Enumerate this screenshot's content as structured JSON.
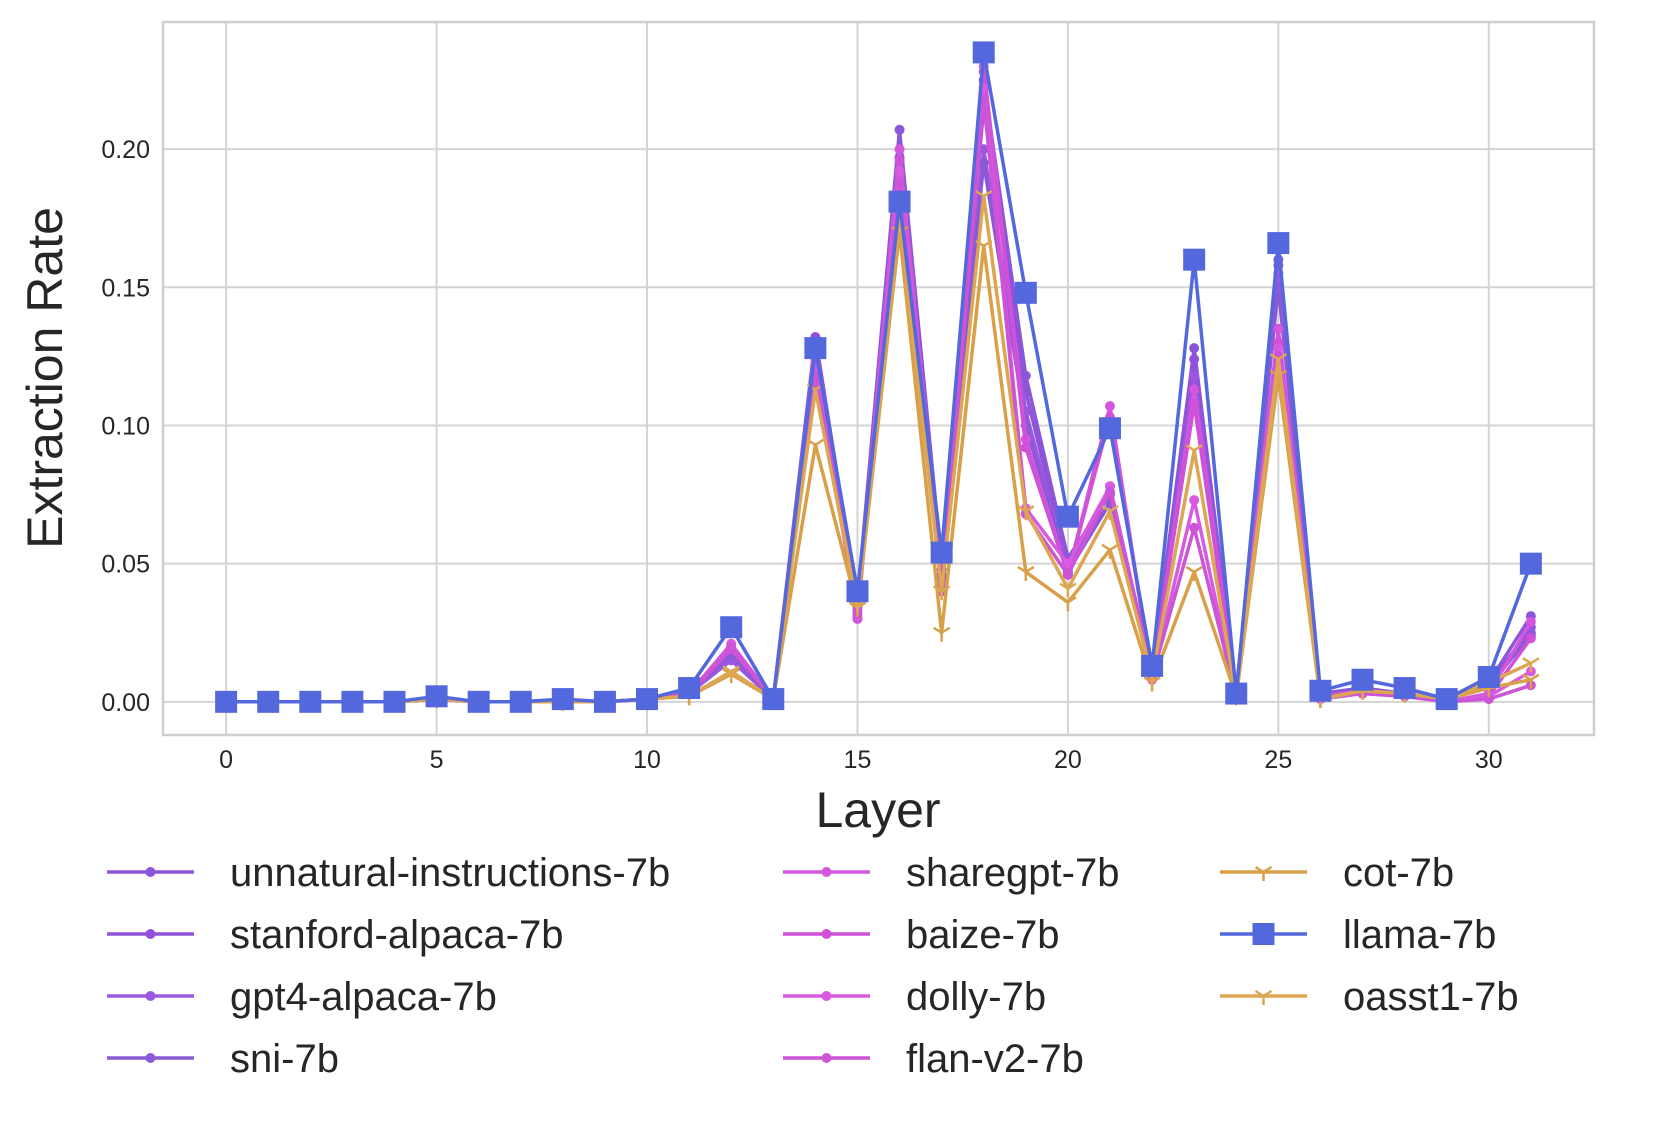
{
  "chart_data": {
    "type": "line",
    "title": "",
    "xlabel": "Layer",
    "ylabel": "Extraction Rate",
    "xlim": [
      -1.5,
      32.5
    ],
    "ylim": [
      -0.012,
      0.246
    ],
    "xticks": [
      0,
      5,
      10,
      15,
      20,
      25,
      30
    ],
    "xtick_labels": [
      "0",
      "5",
      "10",
      "15",
      "20",
      "25",
      "30"
    ],
    "yticks": [
      0,
      0.05,
      0.1,
      0.15,
      0.2
    ],
    "ytick_labels": [
      "0.00",
      "0.05",
      "0.10",
      "0.15",
      "0.20"
    ],
    "grid": true,
    "legend_position": "bottom, three columns",
    "x": [
      0,
      1,
      2,
      3,
      4,
      5,
      6,
      7,
      8,
      9,
      10,
      11,
      12,
      13,
      14,
      15,
      16,
      17,
      18,
      19,
      20,
      21,
      22,
      23,
      24,
      25,
      26,
      27,
      28,
      29,
      30,
      31
    ],
    "series": [
      {
        "name": "unnatural-instructions-7b",
        "color": "#8b57d9",
        "marker": "dot",
        "values": [
          0,
          0,
          0,
          0,
          0,
          0.001,
          0,
          0,
          0,
          0,
          0.001,
          0.004,
          0.018,
          0.001,
          0.13,
          0.037,
          0.207,
          0.05,
          0.225,
          0.118,
          0.052,
          0.075,
          0.011,
          0.128,
          0.003,
          0.16,
          0.003,
          0.005,
          0.003,
          0.001,
          0.007,
          0.031
        ]
      },
      {
        "name": "stanford-alpaca-7b",
        "color": "#9152d9",
        "marker": "dot",
        "values": [
          0,
          0,
          0,
          0,
          0,
          0.001,
          0,
          0,
          0,
          0,
          0.001,
          0.004,
          0.016,
          0.001,
          0.132,
          0.036,
          0.197,
          0.048,
          0.215,
          0.112,
          0.05,
          0.072,
          0.01,
          0.124,
          0.003,
          0.158,
          0.002,
          0.004,
          0.002,
          0.001,
          0.006,
          0.027
        ]
      },
      {
        "name": "gpt4-alpaca-7b",
        "color": "#9a58e0",
        "marker": "dot",
        "values": [
          0,
          0,
          0,
          0,
          0,
          0.001,
          0,
          0,
          0,
          0,
          0.001,
          0.003,
          0.015,
          0.001,
          0.128,
          0.035,
          0.19,
          0.046,
          0.2,
          0.105,
          0.048,
          0.078,
          0.01,
          0.118,
          0.003,
          0.155,
          0.002,
          0.004,
          0.002,
          0.001,
          0.005,
          0.025
        ]
      },
      {
        "name": "sni-7b",
        "color": "#8a5ad6",
        "marker": "dot",
        "values": [
          0,
          0,
          0,
          0,
          0,
          0.001,
          0,
          0,
          0,
          0,
          0.001,
          0.004,
          0.017,
          0.001,
          0.126,
          0.034,
          0.185,
          0.045,
          0.195,
          0.1,
          0.047,
          0.072,
          0.01,
          0.112,
          0.003,
          0.15,
          0.002,
          0.004,
          0.002,
          0.001,
          0.006,
          0.024
        ]
      },
      {
        "name": "sharegpt-7b",
        "color": "#d456de",
        "marker": "dot",
        "values": [
          0,
          0,
          0,
          0,
          0,
          0.001,
          0,
          0,
          0,
          0,
          0.001,
          0.003,
          0.02,
          0.001,
          0.124,
          0.033,
          0.2,
          0.043,
          0.23,
          0.095,
          0.046,
          0.107,
          0.008,
          0.113,
          0.002,
          0.135,
          0.002,
          0.004,
          0.002,
          0.0,
          0.003,
          0.029
        ]
      },
      {
        "name": "baize-7b",
        "color": "#d050d8",
        "marker": "dot",
        "values": [
          0,
          0,
          0,
          0,
          0,
          0.001,
          0,
          0,
          0,
          0,
          0.001,
          0.003,
          0.019,
          0.001,
          0.122,
          0.03,
          0.196,
          0.04,
          0.228,
          0.092,
          0.046,
          0.103,
          0.009,
          0.108,
          0.002,
          0.13,
          0.001,
          0.003,
          0.002,
          0.0,
          0.002,
          0.023
        ]
      },
      {
        "name": "dolly-7b",
        "color": "#d85ae0",
        "marker": "dot",
        "values": [
          0,
          0,
          0,
          0,
          0,
          0.001,
          0,
          0,
          0,
          0,
          0.001,
          0.003,
          0.021,
          0.001,
          0.12,
          0.031,
          0.192,
          0.042,
          0.222,
          0.07,
          0.05,
          0.078,
          0.009,
          0.073,
          0.002,
          0.128,
          0.002,
          0.004,
          0.002,
          0.0,
          0.002,
          0.011
        ]
      },
      {
        "name": "flan-v2-7b",
        "color": "#cc54d6",
        "marker": "dot",
        "values": [
          0,
          0,
          0,
          0,
          0,
          0.001,
          0,
          0,
          0,
          0,
          0.001,
          0.003,
          0.02,
          0.001,
          0.118,
          0.032,
          0.188,
          0.041,
          0.218,
          0.068,
          0.046,
          0.076,
          0.009,
          0.063,
          0.002,
          0.125,
          0.002,
          0.003,
          0.002,
          0.0,
          0.001,
          0.006
        ]
      },
      {
        "name": "cot-7b",
        "color": "#d9a04a",
        "marker": "tri",
        "values": [
          0,
          0,
          0,
          0,
          0,
          0.001,
          0,
          0,
          0,
          0,
          0.001,
          0.002,
          0.01,
          0.001,
          0.093,
          0.034,
          0.17,
          0.025,
          0.165,
          0.047,
          0.036,
          0.055,
          0.007,
          0.047,
          0.002,
          0.118,
          0.001,
          0.004,
          0.003,
          0.001,
          0.005,
          0.008
        ]
      },
      {
        "name": "llama-7b",
        "color": "#5468de",
        "marker": "square",
        "values": [
          0,
          0,
          0,
          0,
          0,
          0.002,
          0,
          0,
          0.001,
          0,
          0.001,
          0.005,
          0.027,
          0.001,
          0.128,
          0.04,
          0.181,
          0.054,
          0.235,
          0.148,
          0.067,
          0.099,
          0.013,
          0.16,
          0.003,
          0.166,
          0.004,
          0.008,
          0.005,
          0.001,
          0.009,
          0.05
        ]
      },
      {
        "name": "oasst1-7b",
        "color": "#dca653",
        "marker": "tri",
        "values": [
          0,
          0,
          0,
          0,
          0,
          0.001,
          0,
          0,
          0,
          0,
          0.001,
          0.002,
          0.011,
          0.001,
          0.113,
          0.035,
          0.177,
          0.04,
          0.183,
          0.069,
          0.041,
          0.069,
          0.009,
          0.091,
          0.002,
          0.124,
          0.001,
          0.004,
          0.003,
          0.001,
          0.007,
          0.014
        ]
      }
    ]
  }
}
